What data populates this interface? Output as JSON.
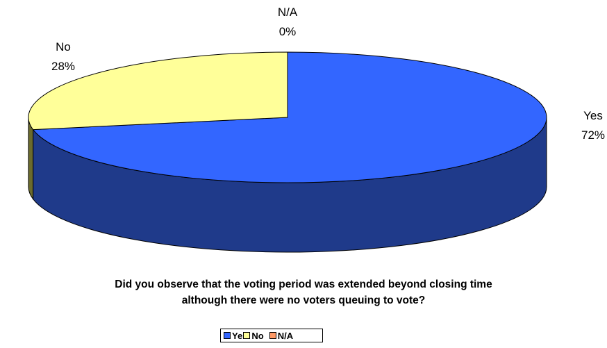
{
  "chart_data": {
    "type": "pie",
    "style": "3d",
    "title": "Did you observe that the voting period was extended beyond closing time although there were no voters queuing to vote?",
    "title_lines": [
      "Did you observe that the voting period was extended beyond closing time",
      "although there were no voters queuing to vote?"
    ],
    "slices": [
      {
        "name": "Yes",
        "value": 72,
        "label": "72%",
        "color": "#3366ff",
        "side_color": "#1f3a8a"
      },
      {
        "name": "No",
        "value": 28,
        "label": "28%",
        "color": "#ffff99",
        "side_color": "#6b6b2e"
      },
      {
        "name": "N/A",
        "value": 0,
        "label": "0%",
        "color": "#ff9966",
        "side_color": "#8a4a2a"
      }
    ],
    "legend": {
      "placement": "bottom",
      "entries": [
        {
          "label": "Yes",
          "color": "#3366ff"
        },
        {
          "label": "No",
          "color": "#ffff99"
        },
        {
          "label": "N/A",
          "color": "#ff9966"
        }
      ]
    }
  }
}
